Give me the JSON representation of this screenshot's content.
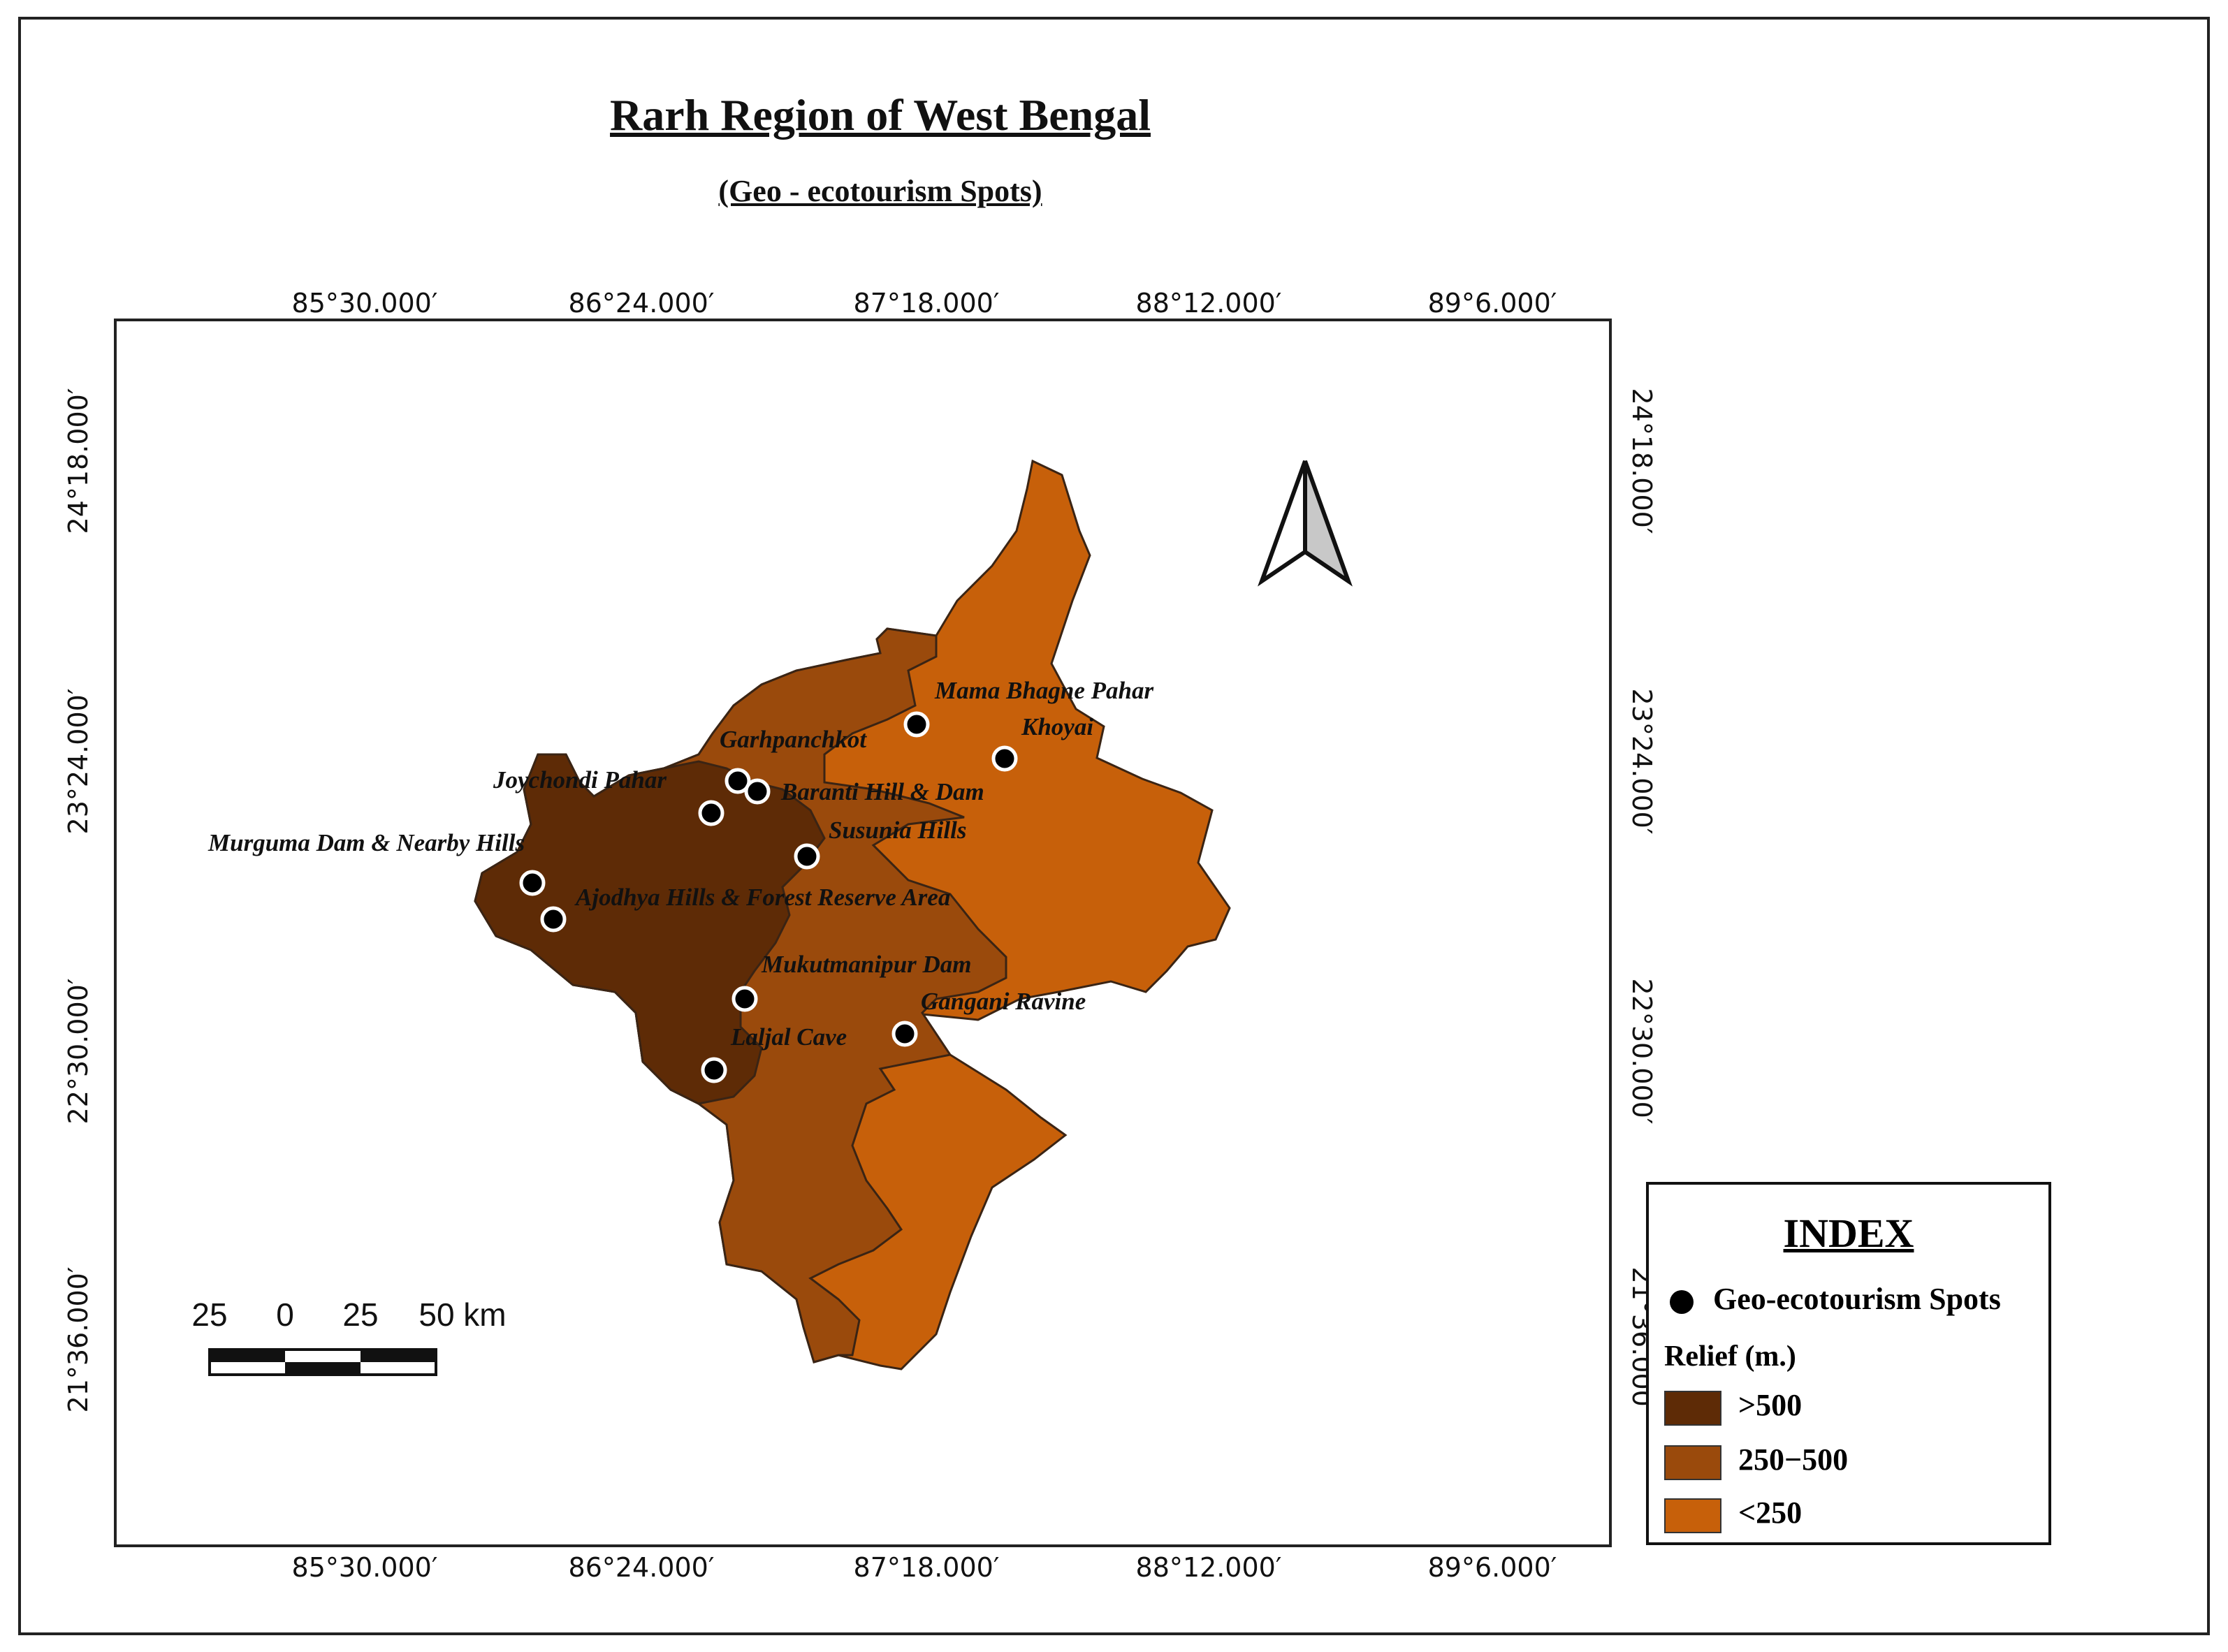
{
  "title": "Rarh Region of West Bengal",
  "subtitle": "(Geo - ecotourism Spots)",
  "longitude_labels": [
    "85°30.000′",
    "86°24.000′",
    "87°18.000′",
    "88°12.000′",
    "89°6.000′"
  ],
  "latitude_labels": [
    "24°18.000′",
    "23°24.000′",
    "22°30.000′",
    "21°36.000′"
  ],
  "spots": [
    {
      "name": "Mama Bhagne Pahar"
    },
    {
      "name": "Khoyai"
    },
    {
      "name": "Garhpanchkot"
    },
    {
      "name": "Joychondi Pahar"
    },
    {
      "name": "Baranti Hill & Dam"
    },
    {
      "name": "Susunia Hills"
    },
    {
      "name": "Murguma Dam & Nearby Hills"
    },
    {
      "name": "Ajodhya Hills & Forest Reserve Area"
    },
    {
      "name": "Mukutmanipur Dam"
    },
    {
      "name": "Gangani Ravine"
    },
    {
      "name": "Laljal Cave"
    }
  ],
  "scale_bar": {
    "labels": [
      "25",
      "0",
      "25",
      "50 km"
    ]
  },
  "legend": {
    "title": "INDEX",
    "spot_label": "Geo-ecotourism Spots",
    "relief_title": "Relief (m.)",
    "classes": [
      {
        "label": ">500",
        "color": "#5e2b06"
      },
      {
        "label": "250−500",
        "color": "#9a4a0c"
      },
      {
        "label": "<250",
        "color": "#c7600a"
      }
    ]
  },
  "colors": {
    "spot_fill": "#000000",
    "spot_outline": "#ffffff",
    "outline": "#3a2414"
  },
  "north_arrow": "north-arrow-icon"
}
